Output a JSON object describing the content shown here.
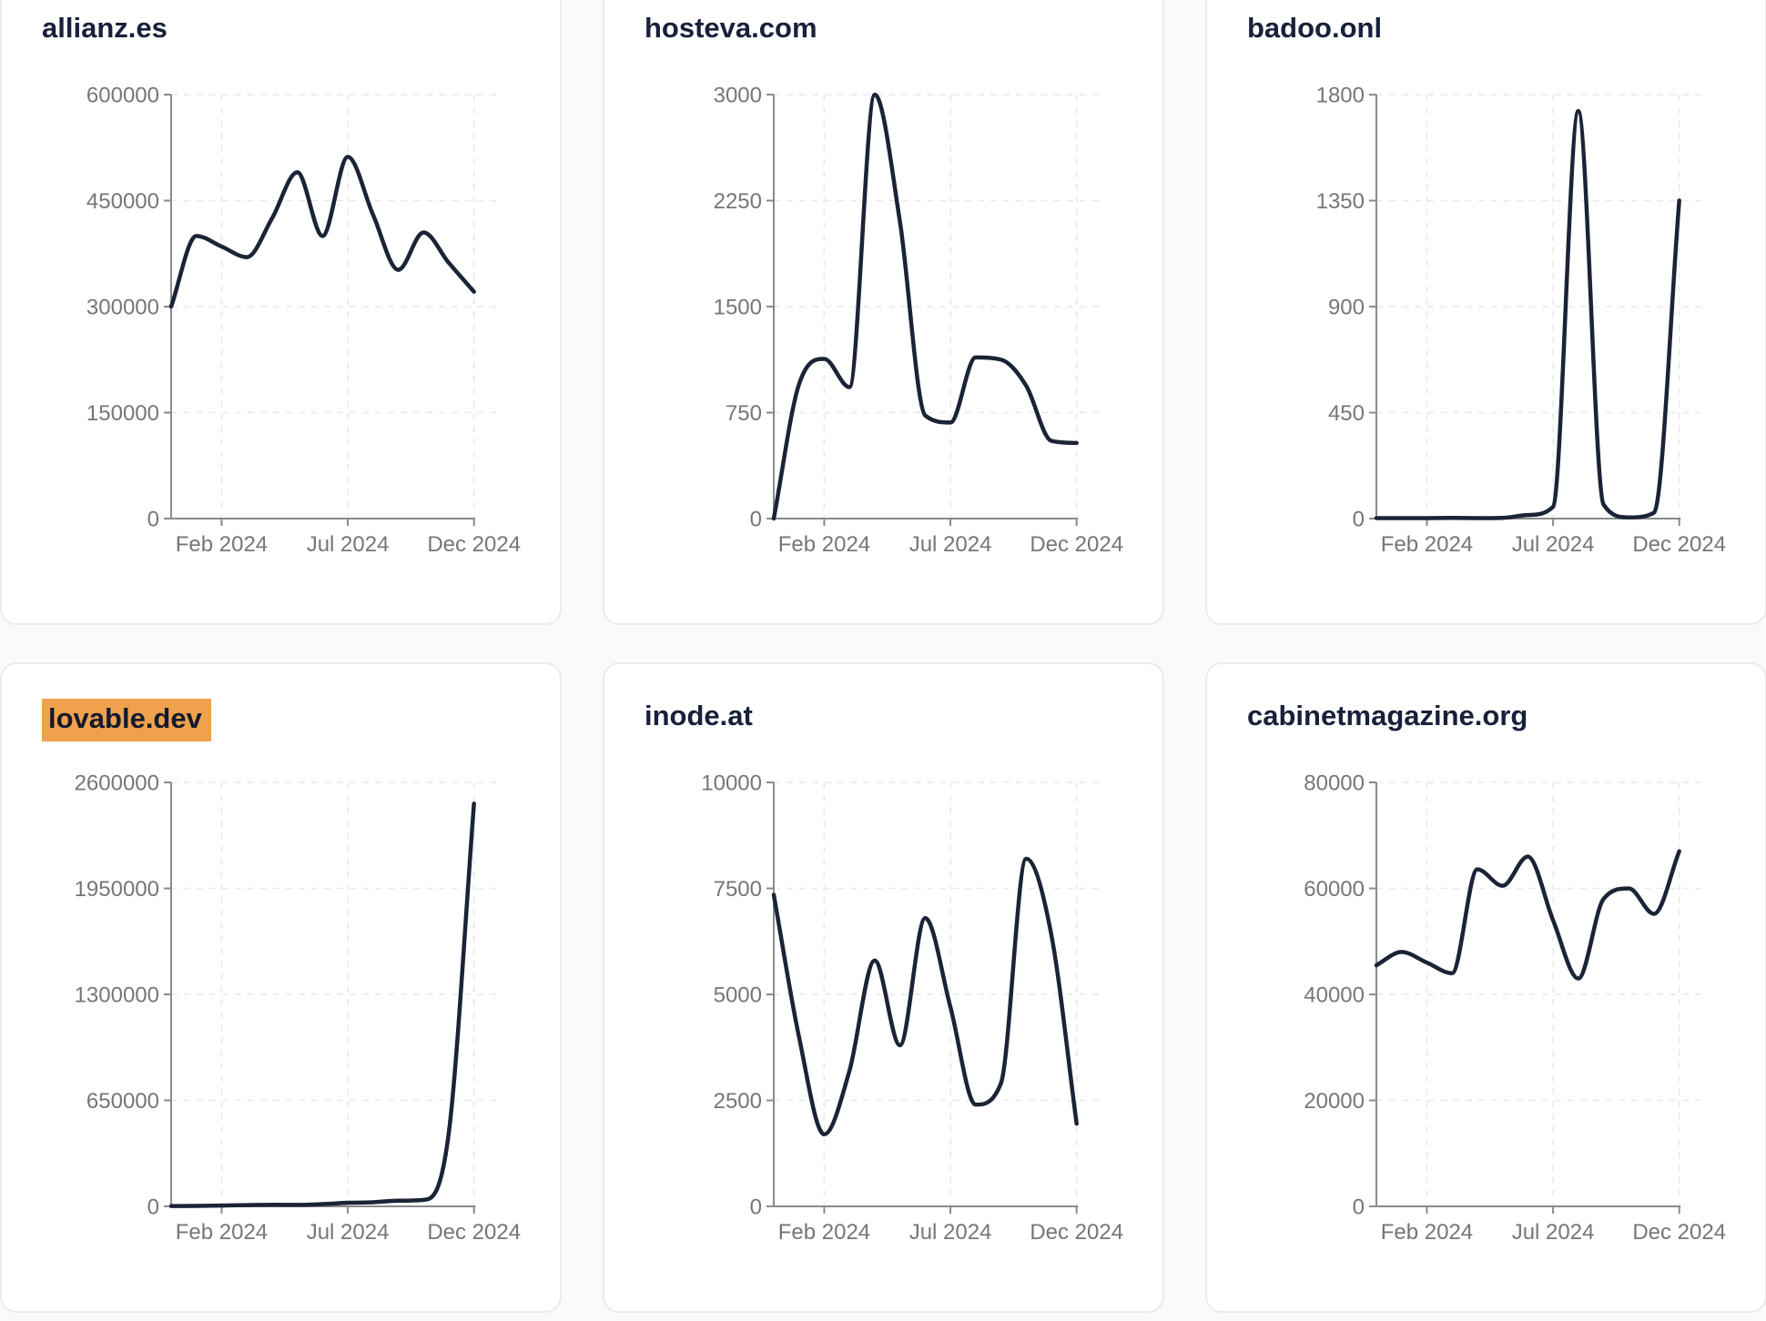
{
  "page": {
    "background_color": "#fafafb",
    "card_background": "#ffffff",
    "card_border_color": "#eaeaef",
    "line_color": "#1b2336",
    "title_color": "#18203a",
    "axis_color": "#8a8a8a",
    "grid_color": "#e9e9e9",
    "tick_label_color": "#767676",
    "highlight_color": "#efa14e"
  },
  "chart_data": [
    {
      "type": "line",
      "title": "allianz.es",
      "highlighted": false,
      "x": [
        "Dec 2023",
        "Jan 2024",
        "Feb 2024",
        "Mar 2024",
        "Apr 2024",
        "May 2024",
        "Jun 2024",
        "Jul 2024",
        "Aug 2024",
        "Sep 2024",
        "Oct 2024",
        "Nov 2024",
        "Dec 2024"
      ],
      "values": [
        300000,
        400000,
        385000,
        370000,
        425000,
        490000,
        400000,
        512000,
        430000,
        352000,
        405000,
        362000,
        321000
      ],
      "ylim": [
        0,
        600000
      ],
      "yticks": [
        0,
        150000,
        300000,
        450000,
        600000
      ],
      "xticks": [
        {
          "label": "Feb 2024",
          "index": 2
        },
        {
          "label": "Jul 2024",
          "index": 7
        },
        {
          "label": "Dec 2024",
          "index": 12
        }
      ],
      "grid": true,
      "legend": "none"
    },
    {
      "type": "line",
      "title": "hosteva.com",
      "highlighted": false,
      "x": [
        "Dec 2023",
        "Jan 2024",
        "Feb 2024",
        "Mar 2024",
        "Apr 2024",
        "May 2024",
        "Jun 2024",
        "Jul 2024",
        "Aug 2024",
        "Sep 2024",
        "Oct 2024",
        "Nov 2024",
        "Dec 2024"
      ],
      "values": [
        0,
        950,
        1130,
        930,
        3000,
        2100,
        730,
        680,
        1140,
        1125,
        940,
        550,
        535
      ],
      "ylim": [
        0,
        3000
      ],
      "yticks": [
        0,
        750,
        1500,
        2250,
        3000
      ],
      "xticks": [
        {
          "label": "Feb 2024",
          "index": 2
        },
        {
          "label": "Jul 2024",
          "index": 7
        },
        {
          "label": "Dec 2024",
          "index": 12
        }
      ],
      "grid": true,
      "legend": "none"
    },
    {
      "type": "line",
      "title": "badoo.onl",
      "highlighted": false,
      "x": [
        "Dec 2023",
        "Jan 2024",
        "Feb 2024",
        "Mar 2024",
        "Apr 2024",
        "May 2024",
        "Jun 2024",
        "Jul 2024",
        "Aug 2024",
        "Sep 2024",
        "Oct 2024",
        "Nov 2024",
        "Dec 2024"
      ],
      "values": [
        2,
        2,
        2,
        3,
        2,
        3,
        15,
        50,
        1730,
        60,
        5,
        25,
        1350
      ],
      "ylim": [
        0,
        1800
      ],
      "yticks": [
        0,
        450,
        900,
        1350,
        1800
      ],
      "xticks": [
        {
          "label": "Feb 2024",
          "index": 2
        },
        {
          "label": "Jul 2024",
          "index": 7
        },
        {
          "label": "Dec 2024",
          "index": 12
        }
      ],
      "grid": true,
      "legend": "none"
    },
    {
      "type": "line",
      "title": "lovable.dev",
      "highlighted": true,
      "x": [
        "Dec 2023",
        "Jan 2024",
        "Feb 2024",
        "Mar 2024",
        "Apr 2024",
        "May 2024",
        "Jun 2024",
        "Jul 2024",
        "Aug 2024",
        "Sep 2024",
        "Oct 2024",
        "Nov 2024",
        "Dec 2024"
      ],
      "values": [
        2000,
        3000,
        5000,
        8000,
        10000,
        9000,
        14000,
        22000,
        25000,
        35000,
        40000,
        450000,
        2470000
      ],
      "ylim": [
        0,
        2600000
      ],
      "yticks": [
        0,
        650000,
        1300000,
        1950000,
        2600000
      ],
      "xticks": [
        {
          "label": "Feb 2024",
          "index": 2
        },
        {
          "label": "Jul 2024",
          "index": 7
        },
        {
          "label": "Dec 2024",
          "index": 12
        }
      ],
      "grid": true,
      "legend": "none"
    },
    {
      "type": "line",
      "title": "inode.at",
      "highlighted": false,
      "x": [
        "Dec 2023",
        "Jan 2024",
        "Feb 2024",
        "Mar 2024",
        "Apr 2024",
        "May 2024",
        "Jun 2024",
        "Jul 2024",
        "Aug 2024",
        "Sep 2024",
        "Oct 2024",
        "Nov 2024",
        "Dec 2024"
      ],
      "values": [
        7350,
        4000,
        1700,
        3200,
        5800,
        3800,
        6800,
        4700,
        2400,
        2900,
        8200,
        6400,
        1950
      ],
      "ylim": [
        0,
        10000
      ],
      "yticks": [
        0,
        2500,
        5000,
        7500,
        10000
      ],
      "xticks": [
        {
          "label": "Feb 2024",
          "index": 2
        },
        {
          "label": "Jul 2024",
          "index": 7
        },
        {
          "label": "Dec 2024",
          "index": 12
        }
      ],
      "grid": true,
      "legend": "none"
    },
    {
      "type": "line",
      "title": "cabinetmagazine.org",
      "highlighted": false,
      "x": [
        "Dec 2023",
        "Jan 2024",
        "Feb 2024",
        "Mar 2024",
        "Apr 2024",
        "May 2024",
        "Jun 2024",
        "Jul 2024",
        "Aug 2024",
        "Sep 2024",
        "Oct 2024",
        "Nov 2024",
        "Dec 2024"
      ],
      "values": [
        45500,
        48000,
        46000,
        44000,
        63600,
        60500,
        66000,
        54000,
        43000,
        58000,
        60000,
        55200,
        67000
      ],
      "ylim": [
        0,
        80000
      ],
      "yticks": [
        0,
        20000,
        40000,
        60000,
        80000
      ],
      "xticks": [
        {
          "label": "Feb 2024",
          "index": 2
        },
        {
          "label": "Jul 2024",
          "index": 7
        },
        {
          "label": "Dec 2024",
          "index": 12
        }
      ],
      "grid": true,
      "legend": "none"
    }
  ]
}
